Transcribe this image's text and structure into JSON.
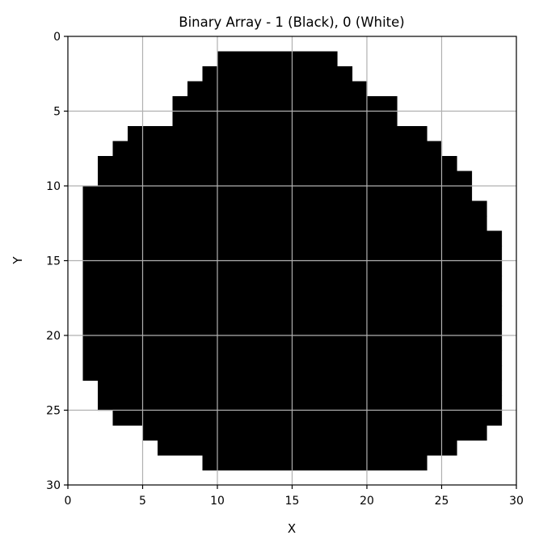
{
  "chart_data": {
    "type": "heatmap",
    "title": "Binary Array - 1 (Black), 0 (White)",
    "xlabel": "X",
    "ylabel": "Y",
    "xlim": [
      0,
      30
    ],
    "ylim": [
      30,
      0
    ],
    "y_inverted": true,
    "x_ticks": [
      0,
      5,
      10,
      15,
      20,
      25,
      30
    ],
    "y_ticks": [
      0,
      5,
      10,
      15,
      20,
      25,
      30
    ],
    "grid": true,
    "colormap": {
      "1": "#000000",
      "0": "#ffffff"
    },
    "grid_color": "#b0b0b0",
    "rows": [
      {
        "y": 1,
        "x_start": 10,
        "x_end": 18
      },
      {
        "y": 2,
        "x_start": 9,
        "x_end": 19
      },
      {
        "y": 3,
        "x_start": 8,
        "x_end": 20
      },
      {
        "y": 4,
        "x_start": 7,
        "x_end": 22
      },
      {
        "y": 5,
        "x_start": 7,
        "x_end": 22
      },
      {
        "y": 6,
        "x_start": 4,
        "x_end": 24
      },
      {
        "y": 7,
        "x_start": 3,
        "x_end": 25
      },
      {
        "y": 8,
        "x_start": 2,
        "x_end": 26
      },
      {
        "y": 9,
        "x_start": 2,
        "x_end": 27
      },
      {
        "y": 10,
        "x_start": 1,
        "x_end": 27
      },
      {
        "y": 11,
        "x_start": 1,
        "x_end": 28
      },
      {
        "y": 12,
        "x_start": 1,
        "x_end": 28
      },
      {
        "y": 13,
        "x_start": 1,
        "x_end": 29
      },
      {
        "y": 14,
        "x_start": 1,
        "x_end": 29
      },
      {
        "y": 15,
        "x_start": 1,
        "x_end": 29
      },
      {
        "y": 16,
        "x_start": 1,
        "x_end": 29
      },
      {
        "y": 17,
        "x_start": 1,
        "x_end": 29
      },
      {
        "y": 18,
        "x_start": 1,
        "x_end": 29
      },
      {
        "y": 19,
        "x_start": 1,
        "x_end": 29
      },
      {
        "y": 20,
        "x_start": 1,
        "x_end": 29
      },
      {
        "y": 21,
        "x_start": 1,
        "x_end": 29
      },
      {
        "y": 22,
        "x_start": 1,
        "x_end": 29
      },
      {
        "y": 23,
        "x_start": 2,
        "x_end": 29
      },
      {
        "y": 24,
        "x_start": 2,
        "x_end": 29
      },
      {
        "y": 25,
        "x_start": 3,
        "x_end": 29
      },
      {
        "y": 26,
        "x_start": 5,
        "x_end": 28
      },
      {
        "y": 27,
        "x_start": 6,
        "x_end": 26
      },
      {
        "y": 28,
        "x_start": 9,
        "x_end": 24
      }
    ]
  }
}
